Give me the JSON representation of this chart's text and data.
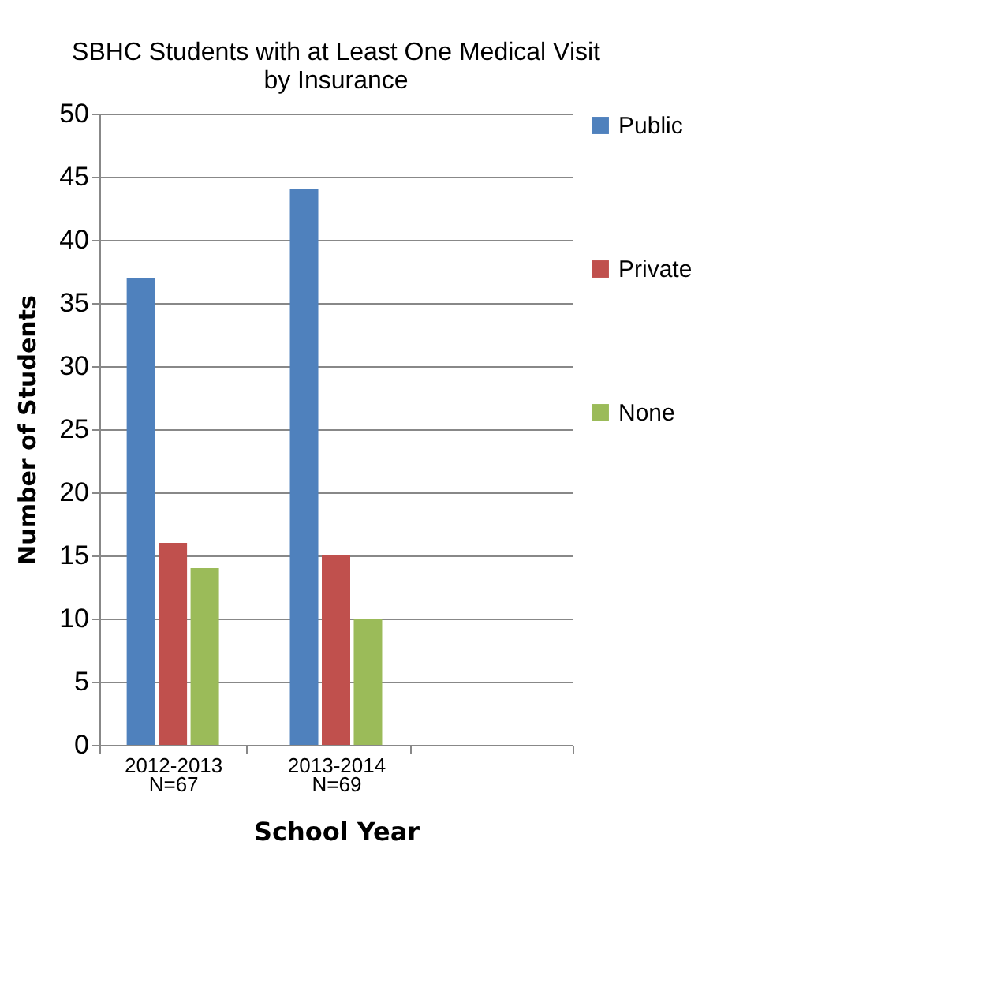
{
  "chart_data": {
    "type": "bar",
    "title": "SBHC Students with at Least One Medical Visit by Insurance",
    "xlabel": "School Year",
    "ylabel": "Number  of Students",
    "categories": [
      "2012-2013\nN=67",
      "2013-2014\nN=69",
      null
    ],
    "series": [
      {
        "name": "Public",
        "color": "#4f81bd",
        "values": [
          37,
          44,
          null
        ]
      },
      {
        "name": "Private",
        "color": "#c0504d",
        "values": [
          16,
          15,
          null
        ]
      },
      {
        "name": "None",
        "color": "#9bbb59",
        "values": [
          14,
          10,
          null
        ]
      }
    ],
    "ylim": [
      0,
      50
    ],
    "yticks": [
      0,
      5,
      10,
      15,
      20,
      25,
      30,
      35,
      40,
      45,
      50
    ],
    "grid": "y",
    "legend": "right"
  }
}
